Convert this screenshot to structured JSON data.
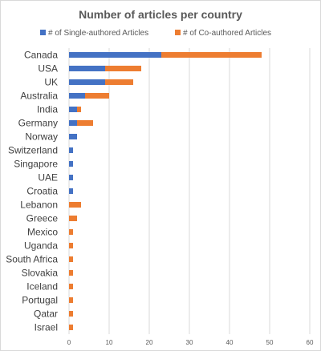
{
  "chart_data": {
    "type": "bar",
    "orientation": "horizontal",
    "stacked": true,
    "title": "Number of articles per country",
    "categories": [
      "Canada",
      "USA",
      "UK",
      "Australia",
      "India",
      "Germany",
      "Norway",
      "Switzerland",
      "Singapore",
      "UAE",
      "Croatia",
      "Lebanon",
      "Greece",
      "Mexico",
      "Uganda",
      "South Africa",
      "Slovakia",
      "Iceland",
      "Portugal",
      "Qatar",
      "Israel"
    ],
    "series": [
      {
        "name": "# of Single-authored Articles",
        "color": "#4472c4",
        "values": [
          23,
          9,
          9,
          4,
          2,
          2,
          2,
          1,
          1,
          1,
          1,
          0,
          0,
          0,
          0,
          0,
          0,
          0,
          0,
          0,
          0
        ]
      },
      {
        "name": "# of Co-authored Articles",
        "color": "#ed7d31",
        "values": [
          25,
          9,
          7,
          6,
          1,
          4,
          0,
          0,
          0,
          0,
          0,
          3,
          2,
          1,
          1,
          1,
          1,
          1,
          1,
          1,
          1
        ]
      }
    ],
    "xlim": [
      0,
      60
    ],
    "xticks": [
      "0",
      "10",
      "20",
      "30",
      "40",
      "50",
      "60"
    ],
    "grid": true,
    "legend_position": "top"
  }
}
